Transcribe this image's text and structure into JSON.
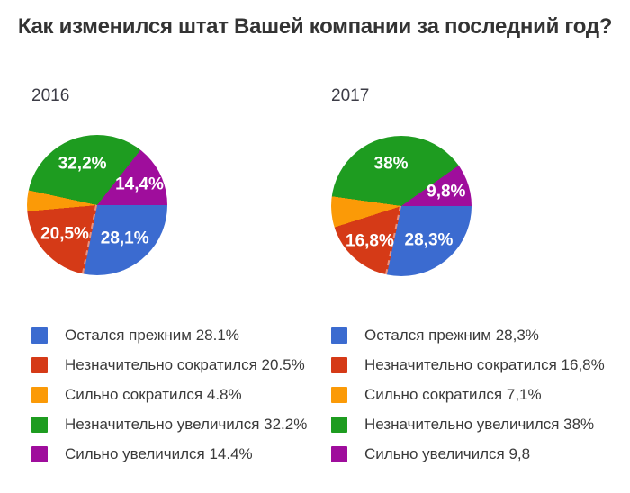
{
  "title": "Как изменился штат Вашей компании за последний год?",
  "chart_data": [
    {
      "type": "pie",
      "year_label": "2016",
      "start_angle": "east",
      "direction": "clockwise",
      "legend_position": "bottom",
      "slices": [
        {
          "name": "Остался прежним",
          "value": 28.1,
          "pie_label": "28,1%",
          "legend_text": "Остался прежним 28.1%",
          "color": "#3b6bd0"
        },
        {
          "name": "Незначительно сократился",
          "value": 20.5,
          "pie_label": "20,5%",
          "legend_text": "Незначительно сократился 20.5%",
          "color": "#d53a17"
        },
        {
          "name": "Сильно сократился",
          "value": 4.8,
          "pie_label": "",
          "legend_text": "Сильно сократился 4.8%",
          "color": "#fb9a07"
        },
        {
          "name": "Незначительно увеличился",
          "value": 32.2,
          "pie_label": "32,2%",
          "legend_text": "Незначительно увеличился 32.2%",
          "color": "#1e9c20"
        },
        {
          "name": "Сильно увеличился",
          "value": 14.4,
          "pie_label": "14,4%",
          "legend_text": "Сильно увеличился 14.4%",
          "color": "#9f0d9c"
        }
      ]
    },
    {
      "type": "pie",
      "year_label": "2017",
      "start_angle": "east",
      "direction": "clockwise",
      "legend_position": "bottom",
      "slices": [
        {
          "name": "Остался прежним",
          "value": 28.3,
          "pie_label": "28,3%",
          "legend_text": "Остался прежним 28,3%",
          "color": "#3b6bd0"
        },
        {
          "name": "Незначительно сократился",
          "value": 16.8,
          "pie_label": "16,8%",
          "legend_text": "Незначительно сократился 16,8%",
          "color": "#d53a17"
        },
        {
          "name": "Сильно сократился",
          "value": 7.1,
          "pie_label": "",
          "legend_text": "Сильно сократился 7,1%",
          "color": "#fb9a07"
        },
        {
          "name": "Незначительно увеличился",
          "value": 38,
          "pie_label": "38%",
          "legend_text": "Незначительно увеличился 38%",
          "color": "#1e9c20"
        },
        {
          "name": "Сильно увеличился",
          "value": 9.8,
          "pie_label": "9,8%",
          "legend_text": "Сильно увеличился 9,8",
          "color": "#9f0d9c"
        }
      ]
    }
  ]
}
